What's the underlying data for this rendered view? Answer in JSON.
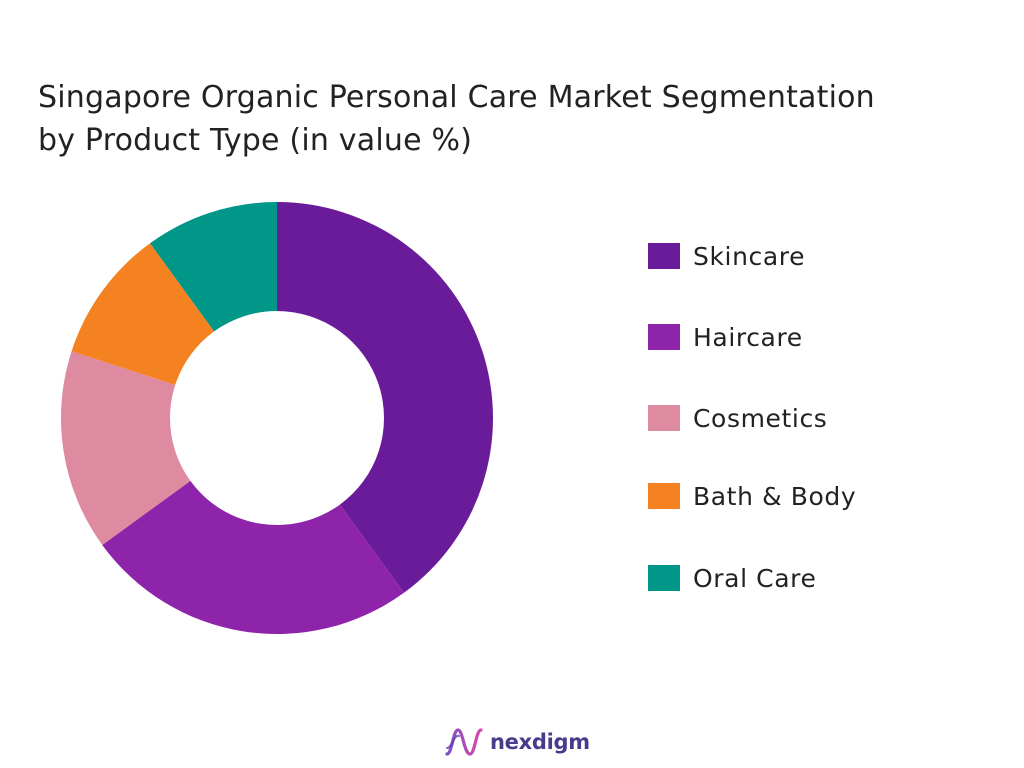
{
  "chart_data": {
    "type": "pie",
    "variant": "donut",
    "title_lines": [
      "Singapore Organic Personal Care Market Segmentation",
      "by Product Type (in value %)"
    ],
    "categories": [
      "Skincare",
      "Haircare",
      "Cosmetics",
      "Bath & Body",
      "Oral Care"
    ],
    "values": [
      40,
      25,
      15,
      10,
      10
    ],
    "colors": [
      "#6a1b9a",
      "#8e24aa",
      "#de8aa0",
      "#f58220",
      "#009688"
    ],
    "legend_position": "right"
  },
  "brand": {
    "name": "nexdigm",
    "logo_icon": "nexdigm-wave-logo"
  }
}
